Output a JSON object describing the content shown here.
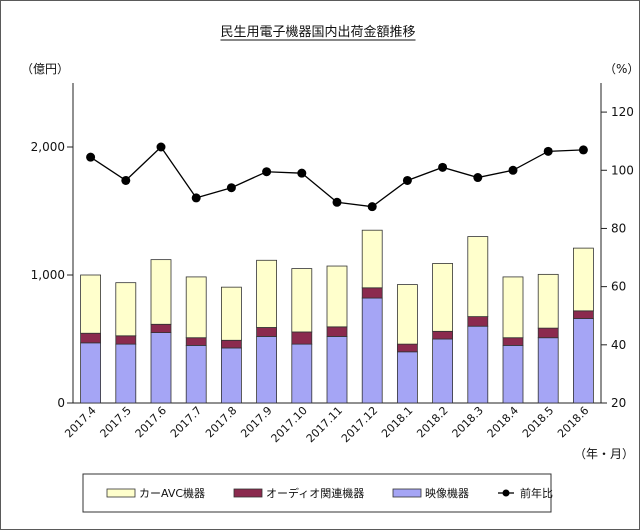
{
  "chart_data": {
    "type": "bar",
    "subtype": "stacked-bar-with-line",
    "title": "民生用電子機器国内出荷金額推移",
    "left_unit": "（億円）",
    "right_unit": "（%）",
    "x_unit": "（年・月）",
    "categories": [
      "2017.4",
      "2017.5",
      "2017.6",
      "2017.7",
      "2017.8",
      "2017.9",
      "2017.10",
      "2017.11",
      "2017.12",
      "2018.1",
      "2018.2",
      "2018.3",
      "2018.4",
      "2018.5",
      "2018.6"
    ],
    "left_ylim": [
      0,
      2500
    ],
    "left_ticks": [
      0,
      1000,
      2000
    ],
    "left_tick_labels": [
      "0",
      "1,000",
      "2,000"
    ],
    "right_ylim": [
      20,
      130
    ],
    "right_ticks": [
      20,
      40,
      60,
      80,
      100,
      120
    ],
    "right_tick_labels": [
      "20",
      "40",
      "60",
      "80",
      "100",
      "120"
    ],
    "series": [
      {
        "name": "映像機器",
        "color": "#a5a5f5",
        "stack_order": 0,
        "values": [
          470,
          460,
          550,
          450,
          430,
          520,
          460,
          520,
          820,
          400,
          500,
          600,
          450,
          510,
          660
        ]
      },
      {
        "name": "オーディオ関連機器",
        "color": "#8b2a4e",
        "stack_order": 1,
        "values": [
          75,
          65,
          65,
          60,
          60,
          70,
          95,
          75,
          80,
          60,
          60,
          75,
          60,
          75,
          60
        ]
      },
      {
        "name": "カーAVC機器",
        "color": "#ffffcc",
        "stack_order": 2,
        "values": [
          455,
          415,
          505,
          475,
          415,
          525,
          495,
          475,
          450,
          465,
          530,
          625,
          475,
          420,
          490
        ]
      }
    ],
    "line": {
      "name": "前年比",
      "axis": "right",
      "color": "#000000",
      "values": [
        104.5,
        96.5,
        108,
        90.5,
        94,
        99.5,
        99,
        89,
        87.5,
        96.5,
        101,
        97.5,
        100,
        106.5,
        107
      ]
    },
    "legend_order": [
      "カーAVC機器",
      "オーディオ関連機器",
      "映像機器",
      "前年比"
    ],
    "legend_position": "bottom"
  }
}
